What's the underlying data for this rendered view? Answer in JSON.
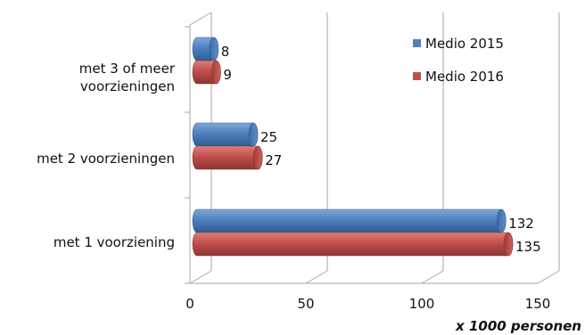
{
  "chart_data": {
    "type": "bar",
    "orientation": "horizontal",
    "categories": [
      [
        "met 3 of meer",
        "voorzieningen"
      ],
      [
        "met 2 voorzieningen"
      ],
      [
        "met 1 voorziening"
      ]
    ],
    "series": [
      {
        "name": "Medio 2015",
        "values": [
          8,
          25,
          132
        ],
        "color": "#4f81bd"
      },
      {
        "name": "Medio 2016",
        "values": [
          9,
          27,
          135
        ],
        "color": "#c0504d"
      }
    ],
    "xlim": [
      0,
      150
    ],
    "xticks": [
      0,
      50,
      100,
      150
    ],
    "xlabel": "x 1000 personen",
    "ylabel": "",
    "title": "",
    "grid": true,
    "legend_position": "top-right"
  }
}
